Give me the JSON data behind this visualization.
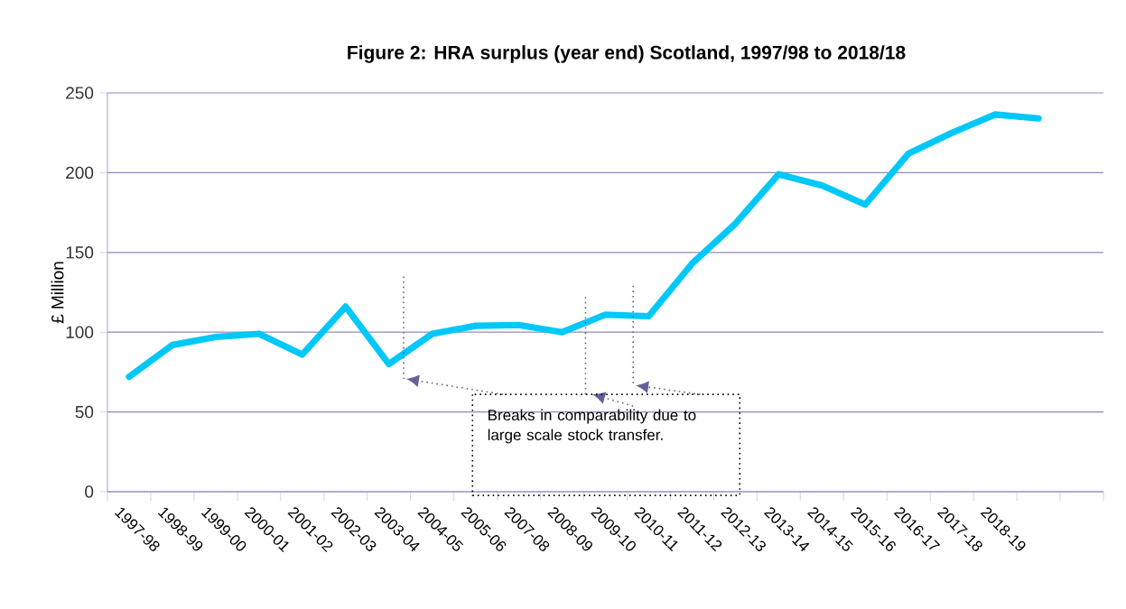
{
  "chart_data": {
    "type": "line",
    "title": "Figure 2: HRA surplus (year end) Scotland, 1997/98 to 2018/18",
    "ylabel": "£ Million",
    "categories": [
      "1997-98",
      "1998-99",
      "1999-00",
      "2000-01",
      "2001-02",
      "2002-03",
      "2003-04",
      "2004-05",
      "2005-06",
      "2007-08",
      "2008-09",
      "2009-10",
      "2010-11",
      "2011-12",
      "2012-13",
      "2013-14",
      "2014-15",
      "2015-16",
      "2016-17",
      "2017-18",
      "2018-19",
      null,
      null
    ],
    "values": [
      72,
      92,
      97,
      99,
      86,
      116,
      80,
      99,
      104,
      104.5,
      100,
      111,
      110,
      143,
      168,
      199,
      192,
      180,
      212,
      225,
      236.5,
      234,
      null
    ],
    "color": "#00c8f8",
    "ylim": [
      0,
      250
    ],
    "yticks": [
      0,
      50,
      100,
      150,
      200,
      250
    ],
    "grid": "y",
    "marker": "none",
    "line_style": "solid",
    "annotations": [
      "Breaks in comparability due to large scale stock transfer."
    ]
  }
}
